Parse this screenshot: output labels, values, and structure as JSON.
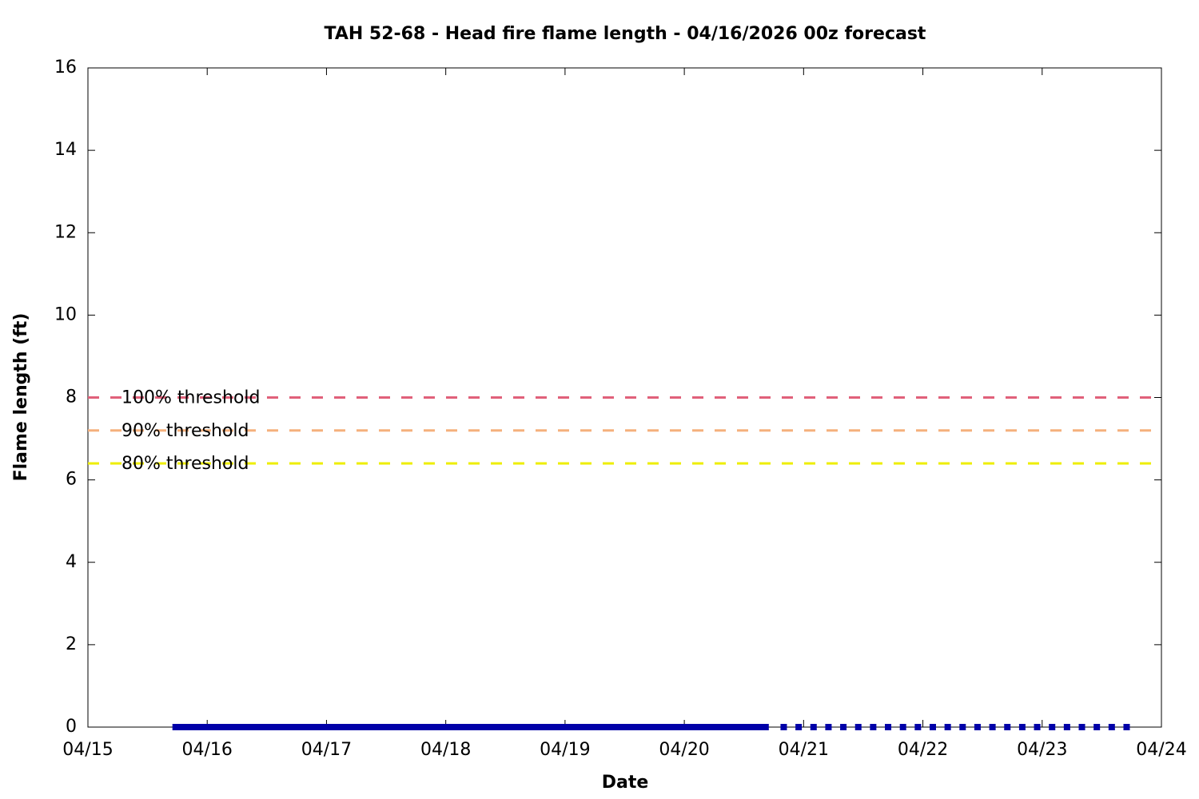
{
  "chart_data": {
    "type": "line",
    "title": "TAH 52-68 - Head fire flame length - 04/16/2026 00z forecast",
    "x_label": "Date",
    "y_label": "Flame length (ft)",
    "xlim": [
      0,
      216
    ],
    "xticks": [
      {
        "value": 0,
        "label": "04/15"
      },
      {
        "value": 24,
        "label": "04/16"
      },
      {
        "value": 48,
        "label": "04/17"
      },
      {
        "value": 72,
        "label": "04/18"
      },
      {
        "value": 96,
        "label": "04/19"
      },
      {
        "value": 120,
        "label": "04/20"
      },
      {
        "value": 144,
        "label": "04/21"
      },
      {
        "value": 168,
        "label": "04/22"
      },
      {
        "value": 192,
        "label": "04/23"
      },
      {
        "value": 216,
        "label": "04/24"
      }
    ],
    "ylim": [
      0,
      16
    ],
    "yticks": [
      0,
      2,
      4,
      6,
      8,
      10,
      12,
      14,
      16
    ],
    "grid": false,
    "thresholds": [
      {
        "label": "100% threshold",
        "value": 8,
        "color": "#e0607a"
      },
      {
        "label": "90% threshold",
        "value": 7.2,
        "color": "#f5b07c"
      },
      {
        "label": "80% threshold",
        "value": 6.4,
        "color": "#eeee00"
      }
    ],
    "series": [
      {
        "color": "#0000a8",
        "style": "solid",
        "x": [
          17,
          20,
          23,
          26,
          29,
          32,
          35,
          38,
          41,
          44,
          47,
          50,
          53,
          56,
          59,
          62,
          65,
          68,
          71,
          74,
          77,
          80,
          83,
          86,
          89,
          92,
          95,
          98,
          101,
          104,
          107,
          110,
          113,
          116,
          119,
          122,
          125,
          128,
          131,
          134,
          137
        ],
        "values": [
          0,
          0,
          0,
          0,
          0,
          0,
          0,
          0,
          0,
          0,
          0,
          0,
          0,
          0,
          0,
          0,
          0,
          0,
          0,
          0,
          0,
          0,
          0,
          0,
          0,
          0,
          0,
          0,
          0,
          0,
          0,
          0,
          0,
          0,
          0,
          0,
          0,
          0,
          0,
          0,
          0
        ]
      },
      {
        "color": "#0000a8",
        "style": "dotted",
        "x": [
          140,
          143,
          146,
          149,
          152,
          155,
          158,
          161,
          164,
          167,
          170,
          173,
          176,
          179,
          182,
          185,
          188,
          191,
          194,
          197,
          200,
          203,
          206,
          209
        ],
        "values": [
          0,
          0,
          0,
          0,
          0,
          0,
          0,
          0,
          0,
          0,
          0,
          0,
          0,
          0,
          0,
          0,
          0,
          0,
          0,
          0,
          0,
          0,
          0,
          0
        ]
      }
    ]
  }
}
